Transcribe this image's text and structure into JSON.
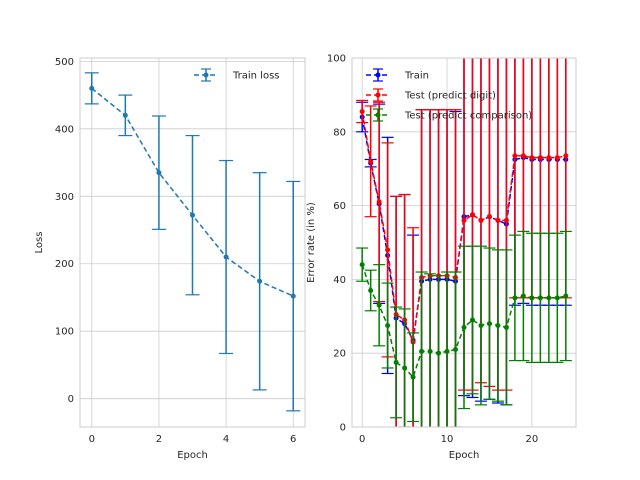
{
  "chart_data": [
    {
      "type": "line",
      "style": "errorbar",
      "xlabel": "Epoch",
      "ylabel": "Loss",
      "xlim": [
        -0.35,
        6.35
      ],
      "ylim": [
        -42,
        505
      ],
      "xticks": [
        0,
        2,
        4,
        6
      ],
      "yticks": [
        0,
        100,
        200,
        300,
        400,
        500
      ],
      "grid": true,
      "legend": "top-right",
      "series": [
        {
          "name": "Train loss",
          "color": "#1f77b4",
          "x": [
            0,
            1,
            2,
            3,
            4,
            5,
            6
          ],
          "y": [
            460,
            420,
            335,
            272,
            210,
            174,
            152
          ],
          "err": [
            23,
            30,
            84,
            118,
            143,
            161,
            170
          ]
        }
      ]
    },
    {
      "type": "line",
      "style": "errorbar",
      "xlabel": "Epoch",
      "ylabel": "Error rate (in %)",
      "xlim": [
        -1.2,
        25.2
      ],
      "ylim": [
        0,
        100
      ],
      "xticks": [
        0,
        10,
        20
      ],
      "yticks": [
        0,
        20,
        40,
        60,
        80,
        100
      ],
      "grid": true,
      "legend": "top-left",
      "series": [
        {
          "name": "Train",
          "color": "#0000ff",
          "x": [
            0,
            1,
            2,
            3,
            4,
            5,
            6,
            7,
            8,
            9,
            10,
            11,
            12,
            13,
            14,
            15,
            16,
            17,
            18,
            19,
            20,
            21,
            22,
            23,
            24
          ],
          "y": [
            84,
            71.5,
            60.5,
            46.5,
            29.5,
            28,
            23.5,
            39.5,
            40,
            40,
            40,
            39.5,
            57,
            57.5,
            56,
            57,
            56,
            55,
            72.5,
            73,
            72.5,
            72.5,
            72.5,
            72.5,
            72.5
          ],
          "err": [
            4,
            1,
            27,
            32,
            33,
            35,
            28.5,
            46.5,
            46,
            46,
            46,
            46,
            48.5,
            49.5,
            49,
            49.5,
            49.5,
            49,
            39.5,
            39.5,
            39.5,
            39.5,
            39.5,
            39.5,
            39.5
          ]
        },
        {
          "name": "Test (predict digit)",
          "color": "#ff0000",
          "x": [
            0,
            1,
            2,
            3,
            4,
            5,
            6,
            7,
            8,
            9,
            10,
            11,
            12,
            13,
            14,
            15,
            16,
            17,
            18,
            19,
            20,
            21,
            22,
            23,
            24
          ],
          "y": [
            85.5,
            72,
            61,
            48,
            30.5,
            29,
            23,
            40.5,
            41,
            41,
            41,
            40.5,
            56,
            57.5,
            56,
            57,
            56,
            56,
            73.5,
            73.5,
            73,
            73,
            73,
            73,
            73.5
          ],
          "err": [
            3,
            15,
            27,
            29,
            32,
            34,
            31,
            45.5,
            45,
            45,
            45,
            45.5,
            46,
            47.5,
            44,
            46,
            46,
            46,
            38.5,
            38.5,
            38,
            38,
            38,
            38,
            38.5
          ]
        },
        {
          "name": "Test (predict comparison)",
          "color": "#008000",
          "x": [
            0,
            1,
            2,
            3,
            4,
            5,
            6,
            7,
            8,
            9,
            10,
            11,
            12,
            13,
            14,
            15,
            16,
            17,
            18,
            19,
            20,
            21,
            22,
            23,
            24
          ],
          "y": [
            44,
            37,
            33,
            27.5,
            17.5,
            16,
            13.5,
            20.5,
            20.5,
            20,
            20.5,
            21,
            27,
            29,
            27.5,
            28,
            27.5,
            27,
            35,
            35.5,
            35,
            35,
            35,
            35,
            35.5
          ],
          "err": [
            4.5,
            5.5,
            11,
            11.5,
            15,
            16,
            12,
            21.5,
            21,
            21,
            21.5,
            21,
            22,
            20,
            21.5,
            20.5,
            20.5,
            21,
            17,
            17.5,
            17.5,
            17.5,
            17.5,
            17.5,
            17.5
          ]
        }
      ]
    }
  ]
}
